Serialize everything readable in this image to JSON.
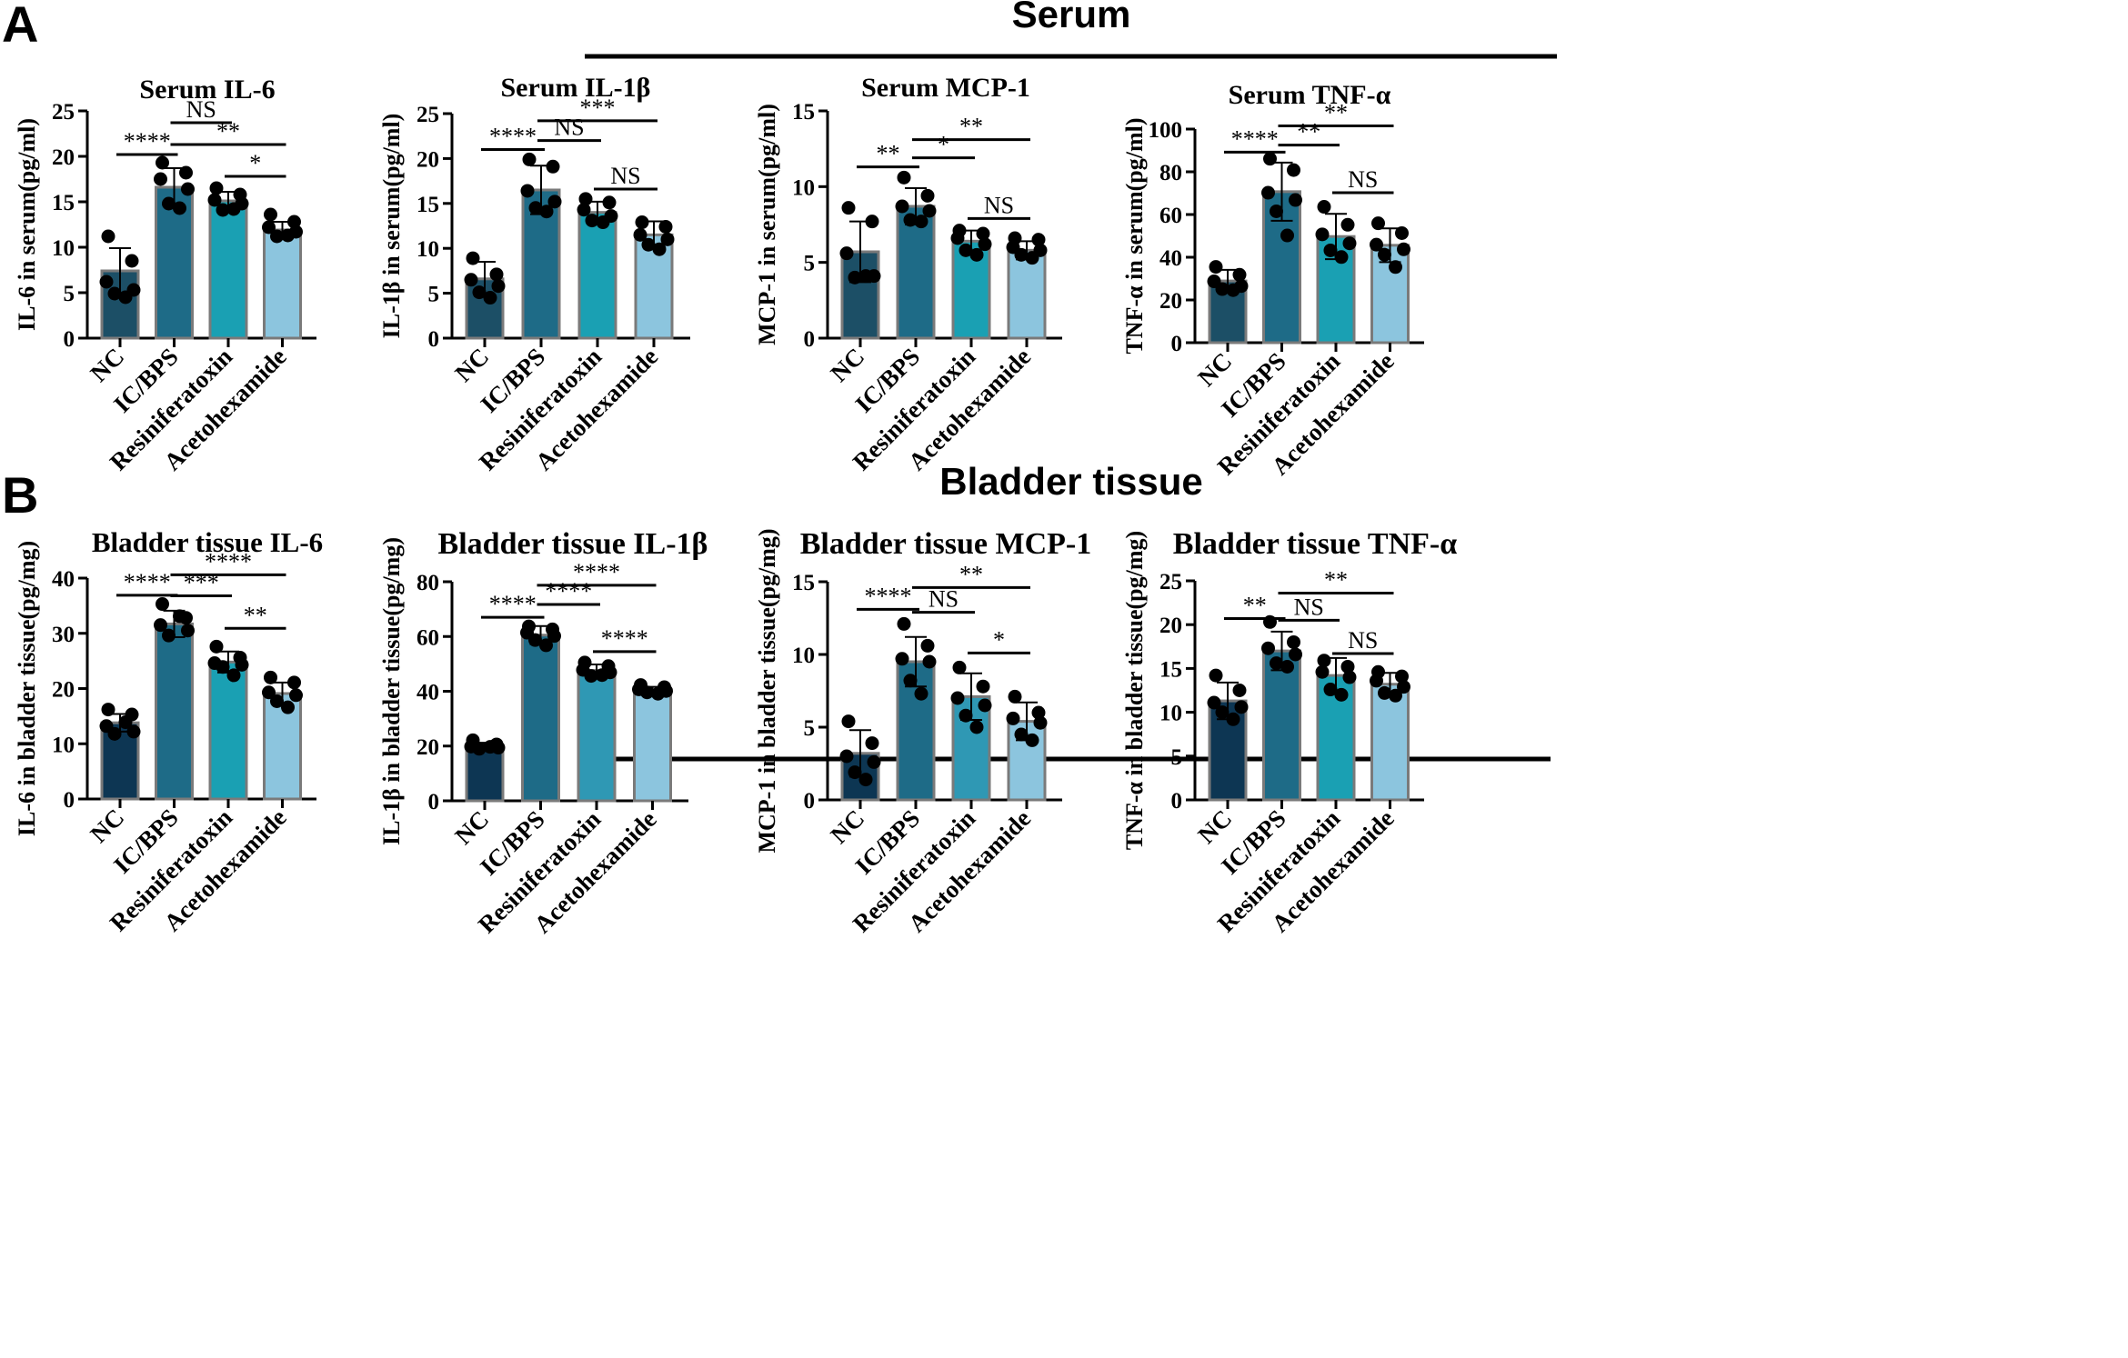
{
  "panels": [
    {
      "letter": "A",
      "title": "Serum"
    },
    {
      "letter": "B",
      "title": "Bladder tissue"
    }
  ],
  "categories": [
    "NC",
    "IC/BPS",
    "Resiniferatoxin",
    "Acetohexamide"
  ],
  "colors": {
    "serum": [
      "#1c4f66",
      "#1e6b87",
      "#1aa0b3",
      "#8cc5de"
    ],
    "bladder": [
      "#0d3653",
      "#1e6b87",
      "#1aa0b3",
      "#8cc5de"
    ],
    "bladder_il1b": [
      "#0d3653",
      "#1e6b87",
      "#2f98b4",
      "#8cc5de"
    ],
    "bladder_mcp1": [
      "#0d3653",
      "#1e6b87",
      "#2f98b4",
      "#8cc5de"
    ],
    "bar_edge": "#7a7a7a",
    "dot": "#000000"
  },
  "chart_data": [
    {
      "type": "bar",
      "title": "Serum IL-6",
      "ylabel": "IL-6 in serum(pg/ml)",
      "categories": [
        "NC",
        "IC/BPS",
        "Resiniferatoxin",
        "Acetohexamide"
      ],
      "values": [
        7.4,
        16.6,
        15.1,
        11.9
      ],
      "sd": [
        2.5,
        2.1,
        1.0,
        0.9
      ],
      "ylim": [
        0,
        25
      ],
      "yticks": [
        0,
        5,
        10,
        15,
        20,
        25
      ],
      "points": [
        [
          11.2,
          8.5,
          6.2,
          5.3,
          4.9,
          4.5
        ],
        [
          19.3,
          18.2,
          17.5,
          16.4,
          14.8,
          14.3
        ],
        [
          16.5,
          15.8,
          15.2,
          14.8,
          14.1,
          14.2
        ],
        [
          13.6,
          12.8,
          12.2,
          11.7,
          11.2,
          11.3
        ]
      ],
      "significance": [
        {
          "from": 0,
          "to": 1,
          "label": "****",
          "y": 20.2
        },
        {
          "from": 1,
          "to": 2,
          "label": "NS",
          "y": 23.7
        },
        {
          "from": 1,
          "to": 3,
          "label": "**",
          "y": 21.3
        },
        {
          "from": 2,
          "to": 3,
          "label": "*",
          "y": 17.8
        }
      ]
    },
    {
      "type": "bar",
      "title": "Serum IL-1β",
      "ylabel": "IL-1β in serum(pg/ml)",
      "categories": [
        "NC",
        "IC/BPS",
        "Resiniferatoxin",
        "Acetohexamide"
      ],
      "values": [
        6.6,
        16.5,
        14.0,
        11.5
      ],
      "sd": [
        1.9,
        2.7,
        1.2,
        1.5
      ],
      "ylim": [
        0,
        25
      ],
      "yticks": [
        0,
        5,
        10,
        15,
        20,
        25
      ],
      "points": [
        [
          8.9,
          7.1,
          6.5,
          5.8,
          5.1,
          4.5
        ],
        [
          19.9,
          19.1,
          16.4,
          15.2,
          14.5,
          14.1
        ],
        [
          15.5,
          15.1,
          14.3,
          13.6,
          13.1,
          12.9
        ],
        [
          12.9,
          12.4,
          11.5,
          11.0,
          10.4,
          9.9
        ]
      ],
      "significance": [
        {
          "from": 0,
          "to": 1,
          "label": "****",
          "y": 21.0
        },
        {
          "from": 1,
          "to": 2,
          "label": "NS",
          "y": 22.0
        },
        {
          "from": 1,
          "to": 3,
          "label": "***",
          "y": 24.2
        },
        {
          "from": 2,
          "to": 3,
          "label": "NS",
          "y": 16.6
        }
      ]
    },
    {
      "type": "bar",
      "title": "Serum MCP-1",
      "ylabel": "MCP-1 in serum(pg/ml)",
      "categories": [
        "NC",
        "IC/BPS",
        "Resiniferatoxin",
        "Acetohexamide"
      ],
      "values": [
        5.7,
        8.7,
        6.4,
        5.8
      ],
      "sd": [
        2.0,
        1.2,
        0.7,
        0.6
      ],
      "ylim": [
        0,
        15
      ],
      "yticks": [
        0,
        5,
        10,
        15
      ],
      "points": [
        [
          8.6,
          7.7,
          5.6,
          4.1,
          4.0,
          4.1
        ],
        [
          10.6,
          9.4,
          8.7,
          8.4,
          7.8,
          7.7
        ],
        [
          7.1,
          6.9,
          6.6,
          6.2,
          5.8,
          5.5
        ],
        [
          6.6,
          6.5,
          6.0,
          5.8,
          5.5,
          5.3
        ]
      ],
      "significance": [
        {
          "from": 0,
          "to": 1,
          "label": "**",
          "y": 11.3
        },
        {
          "from": 1,
          "to": 2,
          "label": "*",
          "y": 11.9
        },
        {
          "from": 1,
          "to": 3,
          "label": "**",
          "y": 13.1
        },
        {
          "from": 2,
          "to": 3,
          "label": "NS",
          "y": 7.9
        }
      ]
    },
    {
      "type": "bar",
      "title": "Serum TNF-α",
      "ylabel": "TNF-α in serum(pg/ml)",
      "categories": [
        "NC",
        "IC/BPS",
        "Resiniferatoxin",
        "Acetohexamide"
      ],
      "values": [
        28.9,
        70.7,
        49.7,
        45.6
      ],
      "sd": [
        5.2,
        13.6,
        10.6,
        7.9
      ],
      "ylim": [
        0,
        100
      ],
      "yticks": [
        0,
        20,
        40,
        60,
        80,
        100
      ],
      "points": [
        [
          35.5,
          31.8,
          28.7,
          26.5,
          25.1,
          24.6
        ],
        [
          86.1,
          80.8,
          70.2,
          66.8,
          61.5,
          50.2
        ],
        [
          63.6,
          55.2,
          50.7,
          46.5,
          43.2,
          40.1
        ],
        [
          55.9,
          51.3,
          45.9,
          43.7,
          41.2,
          35.4
        ]
      ],
      "significance": [
        {
          "from": 0,
          "to": 1,
          "label": "****",
          "y": 89.2
        },
        {
          "from": 1,
          "to": 2,
          "label": "**",
          "y": 92.5
        },
        {
          "from": 1,
          "to": 3,
          "label": "**",
          "y": 101.5
        },
        {
          "from": 2,
          "to": 3,
          "label": "NS",
          "y": 70.2
        }
      ]
    },
    {
      "type": "bar",
      "title": "Bladder tissue IL-6",
      "ylabel": "IL-6 in bladder tissue(pg/mg)",
      "categories": [
        "NC",
        "IC/BPS",
        "Resiniferatoxin",
        "Acetohexamide"
      ],
      "values": [
        13.8,
        31.7,
        24.8,
        19.1
      ],
      "sd": [
        1.6,
        2.4,
        1.9,
        2.0
      ],
      "ylim": [
        0,
        40
      ],
      "yticks": [
        0,
        10,
        20,
        30,
        40
      ],
      "points": [
        [
          16.2,
          15.3,
          13.2,
          12.2,
          11.8,
          13.9
        ],
        [
          35.3,
          32.8,
          31.5,
          30.5,
          29.6,
          33.1
        ],
        [
          27.6,
          25.6,
          24.6,
          24.3,
          23.9,
          22.4
        ],
        [
          22.0,
          21.1,
          19.3,
          18.8,
          17.7,
          16.6
        ]
      ],
      "significance": [
        {
          "from": 0,
          "to": 1,
          "label": "****",
          "y": 36.9
        },
        {
          "from": 1,
          "to": 2,
          "label": "***",
          "y": 36.8
        },
        {
          "from": 1,
          "to": 3,
          "label": "****",
          "y": 40.6
        },
        {
          "from": 2,
          "to": 3,
          "label": "**",
          "y": 30.9
        }
      ]
    },
    {
      "type": "bar",
      "title": "Bladder tissue IL-1β",
      "ylabel": "IL-1β in bladder tissue(pg/mg)",
      "categories": [
        "NC",
        "IC/BPS",
        "Resiniferatoxin",
        "Acetohexamide"
      ],
      "values": [
        20.1,
        60.5,
        47.6,
        40.5
      ],
      "sd": [
        1.1,
        3.3,
        2.2,
        1.1
      ],
      "ylim": [
        0,
        80
      ],
      "yticks": [
        0,
        20,
        40,
        60,
        80
      ],
      "points": [
        [
          22.1,
          20.6,
          19.8,
          19.4,
          19.0,
          19.7
        ],
        [
          63.7,
          62.6,
          61.4,
          60.2,
          58.7,
          56.8
        ],
        [
          50.5,
          49.2,
          47.8,
          46.9,
          45.6,
          45.9
        ],
        [
          42.3,
          41.5,
          40.7,
          40.1,
          39.6,
          39.1
        ]
      ],
      "significance": [
        {
          "from": 0,
          "to": 1,
          "label": "****",
          "y": 67.0
        },
        {
          "from": 1,
          "to": 2,
          "label": "****",
          "y": 71.7
        },
        {
          "from": 1,
          "to": 3,
          "label": "****",
          "y": 78.7
        },
        {
          "from": 2,
          "to": 3,
          "label": "****",
          "y": 54.5
        }
      ]
    },
    {
      "type": "bar",
      "title": "Bladder tissue MCP-1",
      "ylabel": "MCP-1 in bladder tissue(pg/mg)",
      "categories": [
        "NC",
        "IC/BPS",
        "Resiniferatoxin",
        "Acetohexamide"
      ],
      "values": [
        3.2,
        9.5,
        7.1,
        5.4
      ],
      "sd": [
        1.6,
        1.7,
        1.6,
        1.3
      ],
      "ylim": [
        0,
        15
      ],
      "yticks": [
        0,
        5,
        10,
        15
      ],
      "points": [
        [
          5.4,
          3.9,
          3.0,
          2.6,
          1.9,
          1.4
        ],
        [
          12.1,
          10.6,
          9.7,
          9.5,
          8.2,
          7.3
        ],
        [
          9.1,
          7.8,
          7.0,
          6.5,
          5.8,
          5.0
        ],
        [
          7.1,
          6.0,
          5.6,
          5.3,
          4.5,
          4.1
        ]
      ],
      "significance": [
        {
          "from": 0,
          "to": 1,
          "label": "****",
          "y": 13.1
        },
        {
          "from": 1,
          "to": 2,
          "label": "NS",
          "y": 12.9
        },
        {
          "from": 1,
          "to": 3,
          "label": "**",
          "y": 14.6
        },
        {
          "from": 2,
          "to": 3,
          "label": "*",
          "y": 10.1
        }
      ]
    },
    {
      "type": "bar",
      "title": "Bladder tissue TNF-α",
      "ylabel": "TNF-α in bladder tissue(pg/mg)",
      "categories": [
        "NC",
        "IC/BPS",
        "Resiniferatoxin",
        "Acetohexamide"
      ],
      "values": [
        11.3,
        17.0,
        14.2,
        13.2
      ],
      "sd": [
        2.1,
        2.2,
        2.0,
        1.3
      ],
      "ylim": [
        0,
        25
      ],
      "yticks": [
        0,
        5,
        10,
        15,
        20,
        25
      ],
      "points": [
        [
          14.2,
          12.5,
          11.1,
          10.6,
          10.0,
          9.2
        ],
        [
          20.3,
          18.0,
          17.3,
          16.6,
          15.6,
          15.2
        ],
        [
          15.9,
          15.2,
          14.6,
          14.0,
          12.6,
          12.0
        ],
        [
          14.6,
          14.1,
          13.6,
          12.9,
          12.2,
          11.9
        ]
      ],
      "significance": [
        {
          "from": 0,
          "to": 1,
          "label": "**",
          "y": 20.7
        },
        {
          "from": 1,
          "to": 2,
          "label": "NS",
          "y": 20.5
        },
        {
          "from": 1,
          "to": 3,
          "label": "**",
          "y": 23.6
        },
        {
          "from": 2,
          "to": 3,
          "label": "NS",
          "y": 16.7
        }
      ]
    }
  ]
}
